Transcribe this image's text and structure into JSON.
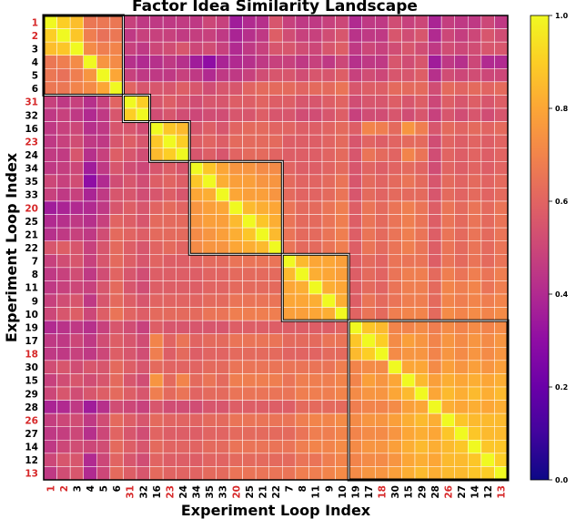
{
  "chart_data": {
    "type": "heatmap",
    "title": "Factor Idea Similarity Landscape",
    "xlabel": "Experiment Loop Index",
    "ylabel": "Experiment Loop Index",
    "labels": [
      "1",
      "2",
      "3",
      "4",
      "5",
      "6",
      "31",
      "32",
      "16",
      "23",
      "24",
      "34",
      "35",
      "33",
      "20",
      "25",
      "21",
      "22",
      "7",
      "8",
      "11",
      "9",
      "10",
      "19",
      "17",
      "18",
      "30",
      "15",
      "29",
      "28",
      "26",
      "27",
      "14",
      "12",
      "13"
    ],
    "highlighted_labels": [
      "1",
      "2",
      "31",
      "23",
      "20",
      "18",
      "26",
      "13"
    ],
    "highlight_color": "#d62728",
    "clusters": [
      [
        0,
        5
      ],
      [
        6,
        7
      ],
      [
        8,
        10
      ],
      [
        11,
        17
      ],
      [
        18,
        22
      ],
      [
        23,
        34
      ]
    ],
    "colorbar": {
      "min": 0.0,
      "max": 1.0,
      "ticks": [
        "0.0",
        "0.2",
        "0.4",
        "0.6",
        "0.8",
        "1.0"
      ],
      "colormap": "plasma"
    },
    "values": [
      [
        1.0,
        0.9,
        0.86,
        0.66,
        0.66,
        0.66,
        0.48,
        0.45,
        0.45,
        0.45,
        0.46,
        0.45,
        0.5,
        0.48,
        0.35,
        0.4,
        0.42,
        0.55,
        0.48,
        0.45,
        0.45,
        0.48,
        0.5,
        0.4,
        0.45,
        0.45,
        0.52,
        0.48,
        0.5,
        0.38,
        0.47,
        0.45,
        0.45,
        0.5,
        0.45
      ],
      [
        0.9,
        1.0,
        0.88,
        0.68,
        0.64,
        0.66,
        0.45,
        0.48,
        0.48,
        0.48,
        0.46,
        0.47,
        0.48,
        0.45,
        0.38,
        0.42,
        0.45,
        0.58,
        0.52,
        0.48,
        0.48,
        0.52,
        0.55,
        0.43,
        0.45,
        0.45,
        0.55,
        0.52,
        0.55,
        0.4,
        0.5,
        0.47,
        0.5,
        0.55,
        0.52
      ],
      [
        0.86,
        0.88,
        1.0,
        0.72,
        0.68,
        0.7,
        0.48,
        0.45,
        0.5,
        0.52,
        0.55,
        0.5,
        0.52,
        0.48,
        0.4,
        0.45,
        0.48,
        0.55,
        0.55,
        0.52,
        0.5,
        0.55,
        0.58,
        0.45,
        0.5,
        0.48,
        0.52,
        0.55,
        0.52,
        0.45,
        0.52,
        0.5,
        0.52,
        0.55,
        0.55
      ],
      [
        0.66,
        0.68,
        0.72,
        1.0,
        0.75,
        0.72,
        0.42,
        0.4,
        0.42,
        0.45,
        0.42,
        0.35,
        0.3,
        0.38,
        0.4,
        0.42,
        0.45,
        0.48,
        0.48,
        0.45,
        0.48,
        0.45,
        0.5,
        0.42,
        0.45,
        0.45,
        0.55,
        0.52,
        0.55,
        0.35,
        0.45,
        0.42,
        0.5,
        0.4,
        0.4
      ],
      [
        0.66,
        0.64,
        0.68,
        0.75,
        1.0,
        0.8,
        0.48,
        0.45,
        0.45,
        0.45,
        0.48,
        0.45,
        0.4,
        0.45,
        0.45,
        0.48,
        0.52,
        0.55,
        0.55,
        0.52,
        0.55,
        0.55,
        0.58,
        0.48,
        0.52,
        0.5,
        0.55,
        0.55,
        0.58,
        0.42,
        0.52,
        0.5,
        0.52,
        0.5,
        0.5
      ],
      [
        0.66,
        0.66,
        0.7,
        0.72,
        0.8,
        1.0,
        0.6,
        0.55,
        0.55,
        0.55,
        0.58,
        0.55,
        0.52,
        0.55,
        0.55,
        0.6,
        0.62,
        0.62,
        0.62,
        0.6,
        0.62,
        0.62,
        0.65,
        0.55,
        0.58,
        0.58,
        0.62,
        0.62,
        0.62,
        0.52,
        0.62,
        0.6,
        0.62,
        0.6,
        0.62
      ],
      [
        0.48,
        0.45,
        0.48,
        0.42,
        0.48,
        0.6,
        1.0,
        0.9,
        0.55,
        0.58,
        0.55,
        0.52,
        0.55,
        0.55,
        0.58,
        0.58,
        0.6,
        0.58,
        0.58,
        0.55,
        0.55,
        0.58,
        0.6,
        0.52,
        0.55,
        0.55,
        0.58,
        0.55,
        0.58,
        0.5,
        0.58,
        0.55,
        0.58,
        0.55,
        0.58
      ],
      [
        0.45,
        0.48,
        0.45,
        0.4,
        0.45,
        0.55,
        0.9,
        1.0,
        0.52,
        0.55,
        0.52,
        0.5,
        0.52,
        0.52,
        0.55,
        0.55,
        0.58,
        0.55,
        0.55,
        0.52,
        0.52,
        0.55,
        0.58,
        0.48,
        0.52,
        0.52,
        0.55,
        0.52,
        0.55,
        0.48,
        0.55,
        0.52,
        0.55,
        0.52,
        0.55
      ],
      [
        0.45,
        0.48,
        0.5,
        0.42,
        0.45,
        0.55,
        0.55,
        0.52,
        1.0,
        0.88,
        0.85,
        0.55,
        0.58,
        0.55,
        0.6,
        0.62,
        0.62,
        0.6,
        0.6,
        0.58,
        0.58,
        0.6,
        0.62,
        0.58,
        0.7,
        0.68,
        0.62,
        0.75,
        0.68,
        0.55,
        0.62,
        0.6,
        0.62,
        0.6,
        0.62
      ],
      [
        0.45,
        0.48,
        0.52,
        0.45,
        0.45,
        0.55,
        0.58,
        0.55,
        0.88,
        1.0,
        0.9,
        0.58,
        0.6,
        0.58,
        0.62,
        0.62,
        0.62,
        0.62,
        0.58,
        0.58,
        0.58,
        0.6,
        0.62,
        0.55,
        0.6,
        0.58,
        0.6,
        0.62,
        0.62,
        0.52,
        0.6,
        0.58,
        0.6,
        0.58,
        0.6
      ],
      [
        0.46,
        0.46,
        0.55,
        0.42,
        0.48,
        0.58,
        0.55,
        0.52,
        0.85,
        0.9,
        1.0,
        0.55,
        0.58,
        0.55,
        0.6,
        0.62,
        0.62,
        0.6,
        0.58,
        0.58,
        0.58,
        0.6,
        0.62,
        0.55,
        0.65,
        0.62,
        0.6,
        0.7,
        0.65,
        0.52,
        0.6,
        0.58,
        0.6,
        0.58,
        0.6
      ],
      [
        0.45,
        0.47,
        0.5,
        0.35,
        0.45,
        0.55,
        0.52,
        0.5,
        0.55,
        0.58,
        0.55,
        1.0,
        0.88,
        0.8,
        0.75,
        0.75,
        0.72,
        0.72,
        0.6,
        0.58,
        0.58,
        0.6,
        0.62,
        0.55,
        0.6,
        0.58,
        0.6,
        0.62,
        0.6,
        0.52,
        0.6,
        0.58,
        0.6,
        0.58,
        0.6
      ],
      [
        0.5,
        0.48,
        0.52,
        0.3,
        0.4,
        0.52,
        0.55,
        0.52,
        0.58,
        0.6,
        0.58,
        0.88,
        1.0,
        0.82,
        0.78,
        0.78,
        0.75,
        0.75,
        0.62,
        0.6,
        0.6,
        0.62,
        0.65,
        0.55,
        0.62,
        0.6,
        0.62,
        0.65,
        0.62,
        0.55,
        0.62,
        0.6,
        0.62,
        0.6,
        0.62
      ],
      [
        0.48,
        0.45,
        0.48,
        0.38,
        0.45,
        0.55,
        0.55,
        0.52,
        0.55,
        0.58,
        0.55,
        0.8,
        0.82,
        1.0,
        0.8,
        0.78,
        0.78,
        0.75,
        0.62,
        0.6,
        0.6,
        0.62,
        0.65,
        0.55,
        0.62,
        0.6,
        0.62,
        0.62,
        0.62,
        0.55,
        0.62,
        0.6,
        0.62,
        0.6,
        0.62
      ],
      [
        0.35,
        0.38,
        0.4,
        0.4,
        0.45,
        0.55,
        0.58,
        0.55,
        0.6,
        0.62,
        0.6,
        0.75,
        0.78,
        0.8,
        1.0,
        0.85,
        0.82,
        0.8,
        0.65,
        0.62,
        0.62,
        0.65,
        0.68,
        0.58,
        0.65,
        0.62,
        0.65,
        0.68,
        0.65,
        0.58,
        0.65,
        0.62,
        0.65,
        0.62,
        0.65
      ],
      [
        0.4,
        0.42,
        0.45,
        0.42,
        0.48,
        0.6,
        0.58,
        0.55,
        0.62,
        0.62,
        0.62,
        0.75,
        0.78,
        0.78,
        0.85,
        1.0,
        0.88,
        0.82,
        0.65,
        0.62,
        0.62,
        0.65,
        0.68,
        0.58,
        0.65,
        0.62,
        0.65,
        0.68,
        0.65,
        0.58,
        0.65,
        0.62,
        0.65,
        0.62,
        0.65
      ],
      [
        0.42,
        0.45,
        0.48,
        0.45,
        0.52,
        0.62,
        0.6,
        0.58,
        0.62,
        0.62,
        0.62,
        0.72,
        0.75,
        0.78,
        0.82,
        0.88,
        1.0,
        0.85,
        0.65,
        0.62,
        0.62,
        0.65,
        0.68,
        0.58,
        0.65,
        0.62,
        0.65,
        0.68,
        0.65,
        0.58,
        0.65,
        0.62,
        0.65,
        0.62,
        0.65
      ],
      [
        0.55,
        0.58,
        0.55,
        0.48,
        0.55,
        0.62,
        0.58,
        0.55,
        0.6,
        0.62,
        0.6,
        0.72,
        0.75,
        0.75,
        0.8,
        0.82,
        0.85,
        1.0,
        0.65,
        0.62,
        0.62,
        0.65,
        0.68,
        0.58,
        0.65,
        0.62,
        0.65,
        0.68,
        0.65,
        0.58,
        0.65,
        0.62,
        0.65,
        0.62,
        0.65
      ],
      [
        0.48,
        0.52,
        0.55,
        0.48,
        0.55,
        0.62,
        0.58,
        0.55,
        0.6,
        0.58,
        0.58,
        0.6,
        0.62,
        0.62,
        0.65,
        0.65,
        0.65,
        0.65,
        1.0,
        0.85,
        0.8,
        0.8,
        0.78,
        0.58,
        0.62,
        0.6,
        0.65,
        0.65,
        0.65,
        0.58,
        0.65,
        0.62,
        0.65,
        0.62,
        0.65
      ],
      [
        0.45,
        0.48,
        0.52,
        0.45,
        0.52,
        0.6,
        0.55,
        0.52,
        0.58,
        0.58,
        0.58,
        0.58,
        0.6,
        0.6,
        0.62,
        0.62,
        0.62,
        0.62,
        0.85,
        1.0,
        0.82,
        0.8,
        0.78,
        0.58,
        0.62,
        0.6,
        0.65,
        0.68,
        0.68,
        0.62,
        0.68,
        0.65,
        0.68,
        0.65,
        0.68
      ],
      [
        0.45,
        0.48,
        0.5,
        0.48,
        0.55,
        0.62,
        0.55,
        0.52,
        0.58,
        0.58,
        0.58,
        0.58,
        0.6,
        0.6,
        0.62,
        0.62,
        0.62,
        0.62,
        0.8,
        0.82,
        1.0,
        0.82,
        0.8,
        0.58,
        0.62,
        0.6,
        0.65,
        0.68,
        0.68,
        0.62,
        0.7,
        0.68,
        0.7,
        0.65,
        0.68
      ],
      [
        0.48,
        0.52,
        0.55,
        0.45,
        0.55,
        0.62,
        0.58,
        0.55,
        0.6,
        0.6,
        0.6,
        0.6,
        0.62,
        0.62,
        0.65,
        0.65,
        0.65,
        0.65,
        0.8,
        0.8,
        0.82,
        1.0,
        0.82,
        0.58,
        0.65,
        0.62,
        0.65,
        0.68,
        0.68,
        0.62,
        0.7,
        0.68,
        0.7,
        0.68,
        0.7
      ],
      [
        0.5,
        0.55,
        0.58,
        0.5,
        0.58,
        0.65,
        0.6,
        0.58,
        0.62,
        0.62,
        0.62,
        0.62,
        0.65,
        0.65,
        0.68,
        0.68,
        0.68,
        0.68,
        0.78,
        0.78,
        0.8,
        0.82,
        1.0,
        0.6,
        0.65,
        0.62,
        0.68,
        0.7,
        0.7,
        0.62,
        0.72,
        0.7,
        0.72,
        0.7,
        0.72
      ],
      [
        0.4,
        0.43,
        0.45,
        0.42,
        0.48,
        0.55,
        0.52,
        0.48,
        0.58,
        0.55,
        0.55,
        0.55,
        0.55,
        0.55,
        0.58,
        0.58,
        0.58,
        0.58,
        0.58,
        0.58,
        0.58,
        0.58,
        0.6,
        1.0,
        0.88,
        0.85,
        0.7,
        0.7,
        0.72,
        0.68,
        0.72,
        0.7,
        0.72,
        0.7,
        0.72
      ],
      [
        0.45,
        0.45,
        0.5,
        0.45,
        0.52,
        0.58,
        0.55,
        0.52,
        0.7,
        0.6,
        0.65,
        0.6,
        0.62,
        0.62,
        0.65,
        0.65,
        0.65,
        0.65,
        0.62,
        0.62,
        0.62,
        0.65,
        0.65,
        0.88,
        1.0,
        0.9,
        0.72,
        0.78,
        0.75,
        0.7,
        0.75,
        0.72,
        0.75,
        0.72,
        0.75
      ],
      [
        0.45,
        0.45,
        0.48,
        0.45,
        0.5,
        0.58,
        0.55,
        0.52,
        0.68,
        0.58,
        0.62,
        0.58,
        0.6,
        0.6,
        0.62,
        0.62,
        0.62,
        0.62,
        0.6,
        0.6,
        0.6,
        0.62,
        0.62,
        0.85,
        0.9,
        1.0,
        0.72,
        0.75,
        0.75,
        0.7,
        0.75,
        0.72,
        0.75,
        0.72,
        0.75
      ],
      [
        0.52,
        0.55,
        0.52,
        0.55,
        0.55,
        0.62,
        0.58,
        0.55,
        0.62,
        0.6,
        0.6,
        0.6,
        0.62,
        0.62,
        0.65,
        0.65,
        0.65,
        0.65,
        0.65,
        0.65,
        0.65,
        0.65,
        0.68,
        0.7,
        0.72,
        0.72,
        1.0,
        0.8,
        0.8,
        0.72,
        0.78,
        0.75,
        0.78,
        0.75,
        0.78
      ],
      [
        0.48,
        0.52,
        0.55,
        0.52,
        0.55,
        0.62,
        0.55,
        0.52,
        0.75,
        0.62,
        0.7,
        0.62,
        0.65,
        0.62,
        0.68,
        0.68,
        0.68,
        0.68,
        0.65,
        0.68,
        0.68,
        0.68,
        0.7,
        0.7,
        0.78,
        0.75,
        0.8,
        1.0,
        0.85,
        0.78,
        0.82,
        0.8,
        0.82,
        0.8,
        0.82
      ],
      [
        0.5,
        0.55,
        0.52,
        0.55,
        0.58,
        0.62,
        0.58,
        0.55,
        0.68,
        0.62,
        0.65,
        0.6,
        0.62,
        0.62,
        0.65,
        0.65,
        0.65,
        0.65,
        0.65,
        0.68,
        0.68,
        0.68,
        0.7,
        0.72,
        0.75,
        0.75,
        0.8,
        0.85,
        1.0,
        0.8,
        0.85,
        0.82,
        0.85,
        0.82,
        0.85
      ],
      [
        0.38,
        0.4,
        0.45,
        0.35,
        0.42,
        0.52,
        0.5,
        0.48,
        0.55,
        0.52,
        0.52,
        0.52,
        0.55,
        0.55,
        0.58,
        0.58,
        0.58,
        0.58,
        0.58,
        0.62,
        0.62,
        0.62,
        0.62,
        0.68,
        0.7,
        0.7,
        0.72,
        0.78,
        0.8,
        1.0,
        0.82,
        0.8,
        0.82,
        0.8,
        0.82
      ],
      [
        0.47,
        0.5,
        0.52,
        0.45,
        0.52,
        0.62,
        0.58,
        0.55,
        0.62,
        0.6,
        0.6,
        0.6,
        0.62,
        0.62,
        0.65,
        0.65,
        0.65,
        0.65,
        0.65,
        0.68,
        0.7,
        0.7,
        0.72,
        0.72,
        0.75,
        0.75,
        0.78,
        0.82,
        0.85,
        0.82,
        1.0,
        0.88,
        0.85,
        0.85,
        0.85
      ],
      [
        0.45,
        0.47,
        0.5,
        0.42,
        0.5,
        0.6,
        0.55,
        0.52,
        0.6,
        0.58,
        0.58,
        0.58,
        0.6,
        0.6,
        0.62,
        0.62,
        0.62,
        0.62,
        0.62,
        0.65,
        0.68,
        0.68,
        0.7,
        0.7,
        0.72,
        0.72,
        0.75,
        0.8,
        0.82,
        0.8,
        0.88,
        1.0,
        0.88,
        0.85,
        0.85
      ],
      [
        0.45,
        0.5,
        0.52,
        0.5,
        0.52,
        0.62,
        0.58,
        0.55,
        0.62,
        0.6,
        0.6,
        0.6,
        0.62,
        0.62,
        0.65,
        0.65,
        0.65,
        0.65,
        0.65,
        0.68,
        0.7,
        0.7,
        0.72,
        0.72,
        0.75,
        0.75,
        0.78,
        0.82,
        0.85,
        0.82,
        0.85,
        0.88,
        1.0,
        0.88,
        0.88
      ],
      [
        0.5,
        0.55,
        0.55,
        0.4,
        0.5,
        0.6,
        0.55,
        0.52,
        0.6,
        0.58,
        0.58,
        0.58,
        0.6,
        0.6,
        0.62,
        0.62,
        0.62,
        0.62,
        0.62,
        0.65,
        0.65,
        0.68,
        0.7,
        0.7,
        0.72,
        0.72,
        0.75,
        0.8,
        0.82,
        0.8,
        0.85,
        0.85,
        0.88,
        1.0,
        0.9
      ],
      [
        0.45,
        0.52,
        0.55,
        0.4,
        0.5,
        0.62,
        0.58,
        0.55,
        0.62,
        0.6,
        0.6,
        0.6,
        0.62,
        0.62,
        0.65,
        0.65,
        0.65,
        0.65,
        0.65,
        0.68,
        0.68,
        0.7,
        0.72,
        0.72,
        0.75,
        0.75,
        0.78,
        0.82,
        0.85,
        0.82,
        0.85,
        0.85,
        0.88,
        0.9,
        1.0
      ]
    ]
  }
}
